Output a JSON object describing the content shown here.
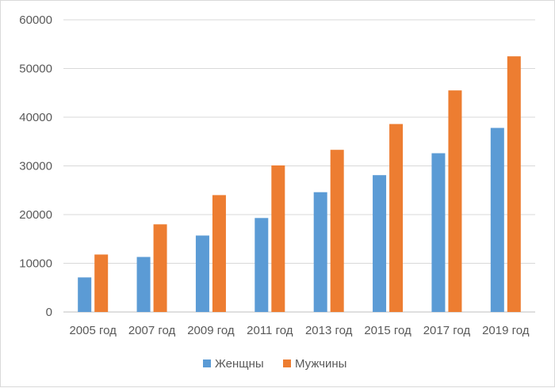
{
  "chart_data": {
    "type": "bar",
    "title": "",
    "xlabel": "",
    "ylabel": "",
    "categories": [
      "2005 год",
      "2007 год",
      "2009 год",
      "2011 год",
      "2013 год",
      "2015 год",
      "2017 год",
      "2019 год"
    ],
    "series": [
      {
        "name": "Женщны",
        "color": "#5b9bd5",
        "values": [
          7100,
          11300,
          15700,
          19300,
          24600,
          28100,
          32600,
          37800
        ]
      },
      {
        "name": "Мужчины",
        "color": "#ed7d31",
        "values": [
          11800,
          18000,
          24000,
          30100,
          33300,
          38600,
          45500,
          52500
        ]
      }
    ],
    "ylim": [
      0,
      60000
    ],
    "yticks": [
      "0",
      "10000",
      "20000",
      "30000",
      "40000",
      "50000",
      "60000"
    ],
    "grid": true,
    "legend": "bottom"
  }
}
